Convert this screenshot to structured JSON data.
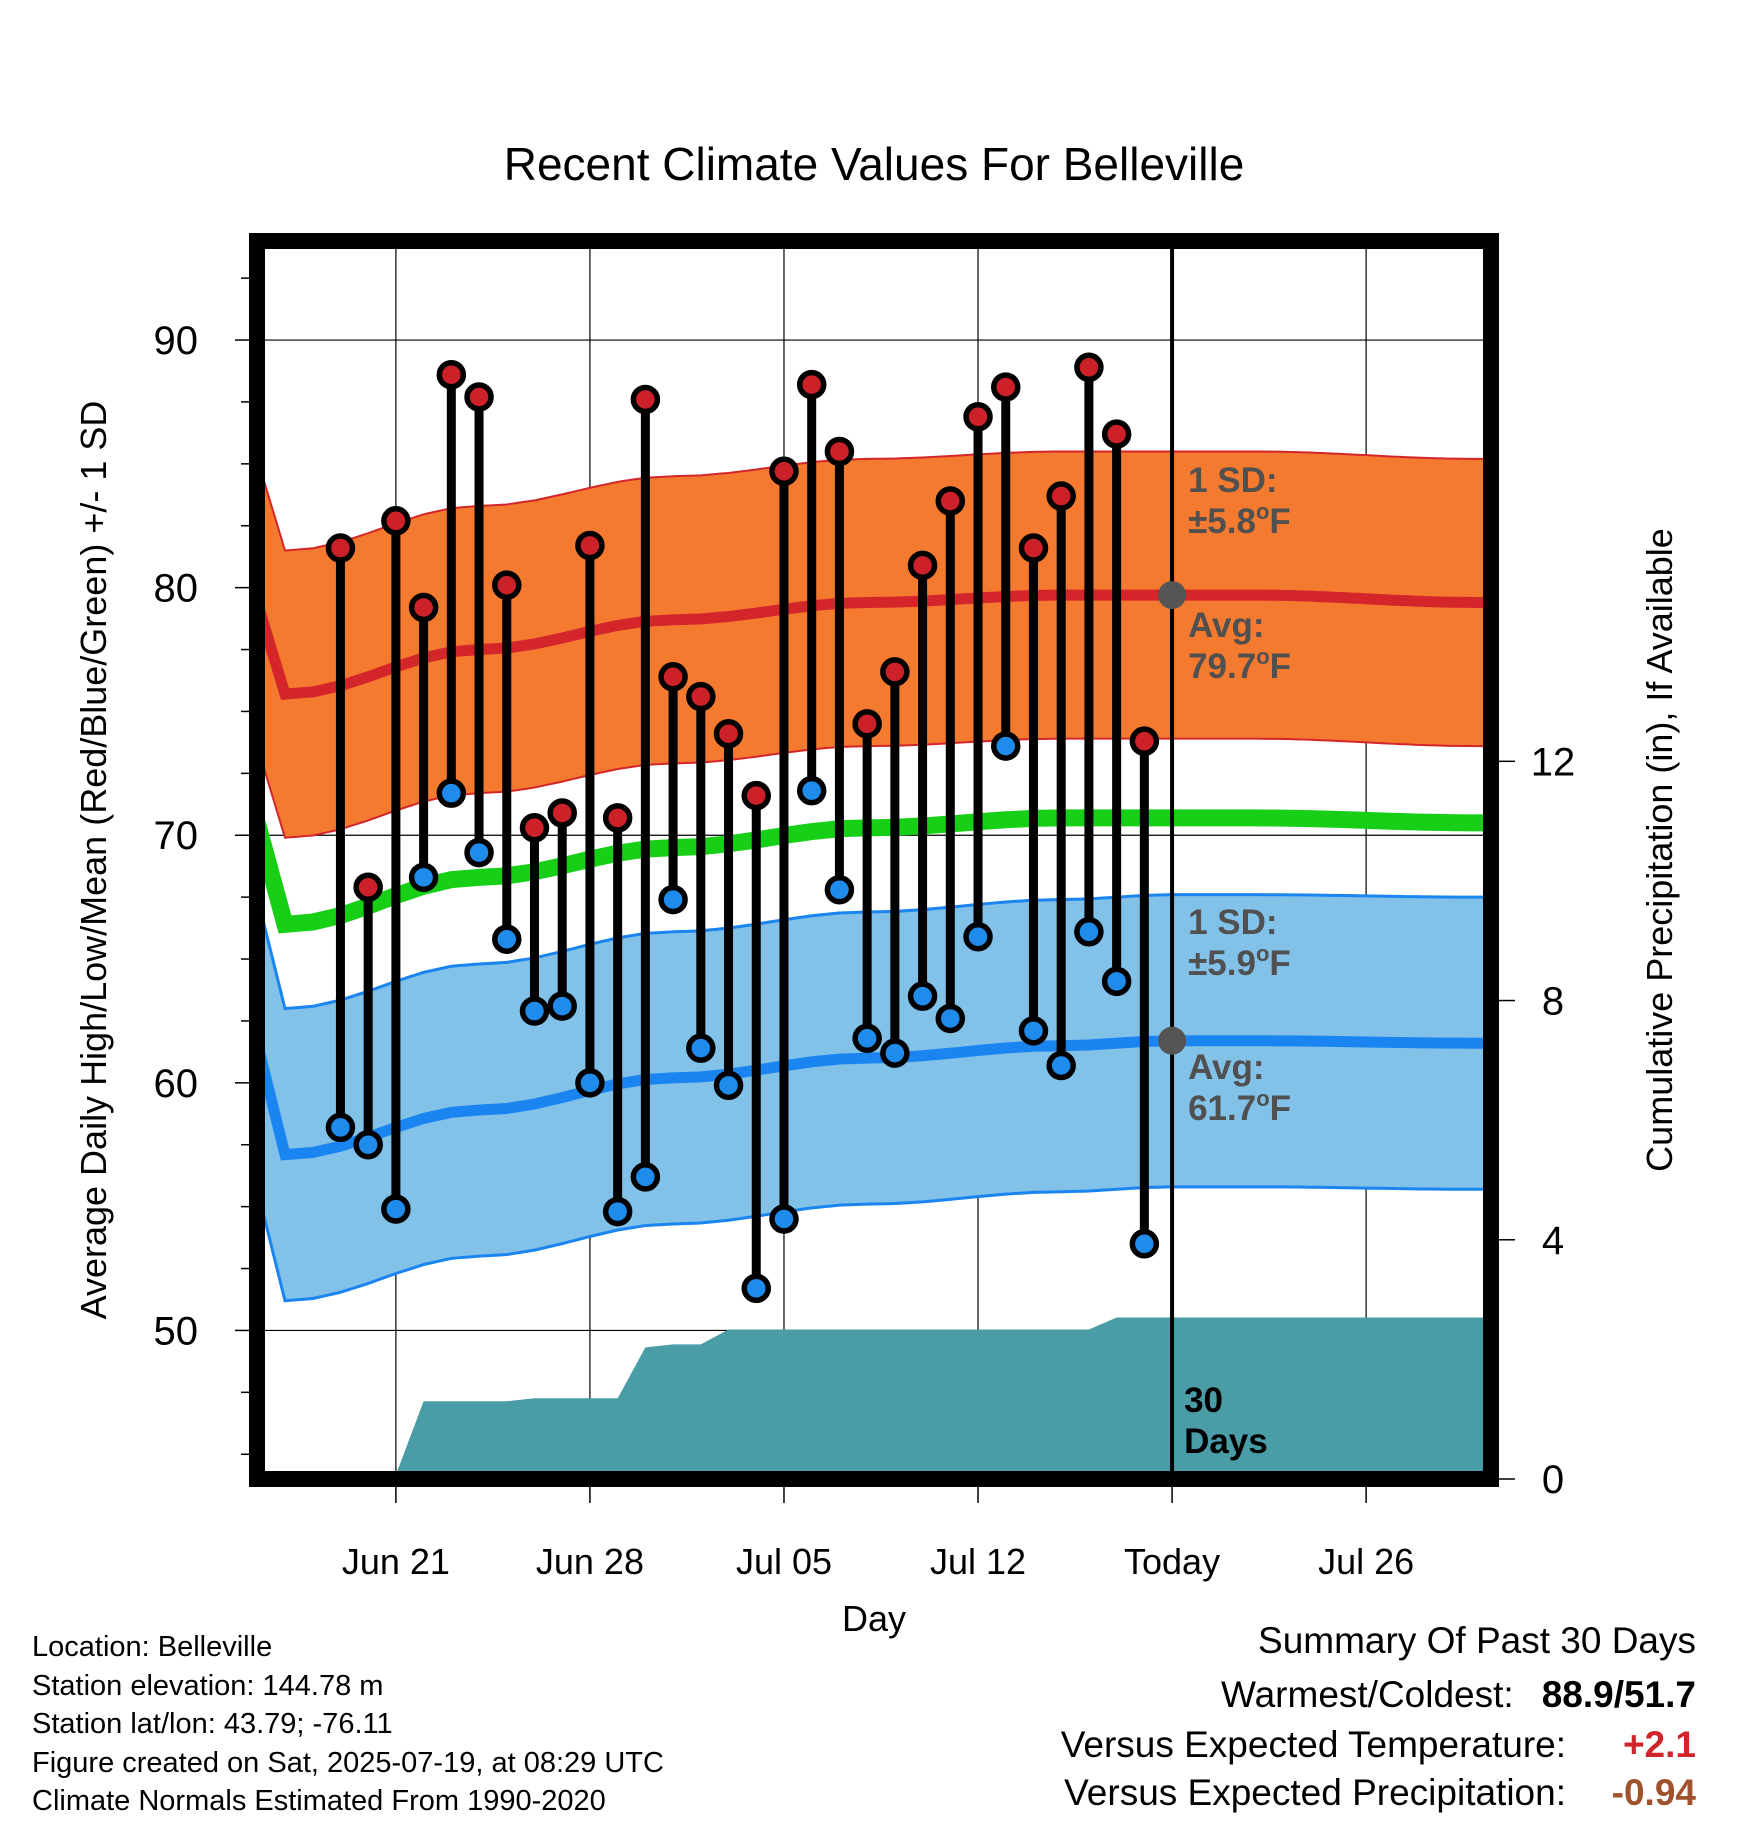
{
  "chart_data": {
    "type": "line",
    "title": "Recent Climate Values For Belleville",
    "xlabel": "Day",
    "ylabel": "Average Daily High/Low/Mean (Red/Blue/Green) +/- 1 SD",
    "y2label": "Cumulative Precipitation (in), If Available",
    "ylim": [
      44,
      94
    ],
    "y2lim": [
      0,
      20.7
    ],
    "yticks": [
      50,
      60,
      70,
      80,
      90
    ],
    "y2ticks": [
      0,
      4,
      8,
      12
    ],
    "x_dates": [
      "2025-06-17",
      "2025-07-30"
    ],
    "x_tick_dates": [
      "2025-06-21",
      "2025-06-28",
      "2025-07-05",
      "2025-07-12",
      "2025-07-19",
      "2025-07-26"
    ],
    "x_tick_labels": [
      "Jun 21",
      "Jun 28",
      "Jul 05",
      "Jul 12",
      "Today",
      "Jul 26"
    ],
    "today": "2025-07-19",
    "grid": true,
    "observed": [
      {
        "date": "2025-06-19",
        "high": 81.6,
        "low": 58.2
      },
      {
        "date": "2025-06-20",
        "high": 67.9,
        "low": 57.5
      },
      {
        "date": "2025-06-21",
        "high": 82.7,
        "low": 54.9
      },
      {
        "date": "2025-06-22",
        "high": 79.2,
        "low": 68.3
      },
      {
        "date": "2025-06-23",
        "high": 88.6,
        "low": 71.7
      },
      {
        "date": "2025-06-24",
        "high": 87.7,
        "low": 69.3
      },
      {
        "date": "2025-06-25",
        "high": 80.1,
        "low": 65.8
      },
      {
        "date": "2025-06-26",
        "high": 70.3,
        "low": 62.9
      },
      {
        "date": "2025-06-27",
        "high": 70.9,
        "low": 63.1
      },
      {
        "date": "2025-06-28",
        "high": 81.7,
        "low": 60.0
      },
      {
        "date": "2025-06-29",
        "high": 70.7,
        "low": 54.8
      },
      {
        "date": "2025-06-30",
        "high": 87.6,
        "low": 56.2
      },
      {
        "date": "2025-07-01",
        "high": 76.4,
        "low": 67.4
      },
      {
        "date": "2025-07-02",
        "high": 75.6,
        "low": 61.4
      },
      {
        "date": "2025-07-03",
        "high": 74.1,
        "low": 59.9
      },
      {
        "date": "2025-07-04",
        "high": 71.6,
        "low": 51.7
      },
      {
        "date": "2025-07-05",
        "high": 84.7,
        "low": 54.5
      },
      {
        "date": "2025-07-06",
        "high": 88.2,
        "low": 71.8
      },
      {
        "date": "2025-07-07",
        "high": 85.5,
        "low": 67.8
      },
      {
        "date": "2025-07-08",
        "high": 74.5,
        "low": 61.8
      },
      {
        "date": "2025-07-09",
        "high": 76.6,
        "low": 61.2
      },
      {
        "date": "2025-07-10",
        "high": 80.9,
        "low": 63.5
      },
      {
        "date": "2025-07-11",
        "high": 83.5,
        "low": 62.6
      },
      {
        "date": "2025-07-12",
        "high": 86.9,
        "low": 65.9
      },
      {
        "date": "2025-07-13",
        "high": 88.1,
        "low": 73.6
      },
      {
        "date": "2025-07-14",
        "high": 81.6,
        "low": 62.1
      },
      {
        "date": "2025-07-15",
        "high": 83.7,
        "low": 60.7
      },
      {
        "date": "2025-07-16",
        "high": 88.9,
        "low": 66.1
      },
      {
        "date": "2025-07-17",
        "high": 86.2,
        "low": 64.1
      },
      {
        "date": "2025-07-18",
        "high": 73.8,
        "low": 53.5
      }
    ],
    "normals": [
      {
        "date": "2025-06-17",
        "high": 75.7,
        "low": 57.1,
        "mean": 66.4
      },
      {
        "date": "2025-06-24",
        "high": 77.5,
        "low": 58.9,
        "mean": 68.3
      },
      {
        "date": "2025-07-01",
        "high": 78.7,
        "low": 60.2,
        "mean": 69.5
      },
      {
        "date": "2025-07-08",
        "high": 79.4,
        "low": 61.0,
        "mean": 70.3
      },
      {
        "date": "2025-07-15",
        "high": 79.7,
        "low": 61.5,
        "mean": 70.7
      },
      {
        "date": "2025-07-19",
        "high": 79.7,
        "low": 61.7,
        "mean": 70.7
      },
      {
        "date": "2025-07-22",
        "high": 79.7,
        "low": 61.7,
        "mean": 70.7
      },
      {
        "date": "2025-07-30",
        "high": 79.4,
        "low": 61.6,
        "mean": 70.5
      }
    ],
    "high_sd": 5.8,
    "low_sd": 5.9,
    "precip_cumulative": [
      {
        "date": "2025-06-17",
        "value": 0.0
      },
      {
        "date": "2025-06-19",
        "value": 0.0
      },
      {
        "date": "2025-06-20",
        "value": 0.06
      },
      {
        "date": "2025-06-21",
        "value": 0.07
      },
      {
        "date": "2025-06-22",
        "value": 1.3
      },
      {
        "date": "2025-06-25",
        "value": 1.3
      },
      {
        "date": "2025-06-26",
        "value": 1.35
      },
      {
        "date": "2025-06-29",
        "value": 1.35
      },
      {
        "date": "2025-06-30",
        "value": 2.2
      },
      {
        "date": "2025-07-01",
        "value": 2.25
      },
      {
        "date": "2025-07-02",
        "value": 2.25
      },
      {
        "date": "2025-07-03",
        "value": 2.5
      },
      {
        "date": "2025-07-16",
        "value": 2.5
      },
      {
        "date": "2025-07-17",
        "value": 2.7
      },
      {
        "date": "2025-07-30",
        "value": 2.7
      }
    ],
    "annotations": {
      "high_sd_label": "1 SD:",
      "high_sd_value": "±5.8",
      "high_avg_label": "Avg:",
      "high_avg_value": "79.7",
      "low_sd_label": "1 SD:",
      "low_sd_value": "±5.9",
      "low_avg_label": "Avg:",
      "low_avg_value": "61.7",
      "deg_sup": "o",
      "unit": "F",
      "window_line1": "30",
      "window_line2": "Days"
    },
    "colors": {
      "high_band": "#f47a30",
      "high_line": "#d4262a",
      "low_band": "#82c1e8",
      "low_edge": "#1a85f0",
      "low_line": "#1a85f0",
      "mean_line": "#18cf18",
      "precip": "#4a9ca6",
      "high_marker": "#cc2128",
      "low_marker": "#1f8bea",
      "annotation": "#505050",
      "avg_dot": "#555555",
      "positive": "#d0262b",
      "negative": "#a0522d"
    }
  },
  "footer": {
    "location": "Location: Belleville",
    "elevation": "Station elevation: 144.78 m",
    "latlon": "Station lat/lon: 43.79; -76.11",
    "created": "Figure created on Sat, 2025-07-19, at 08:29 UTC",
    "normals": "Climate Normals Estimated From 1990-2020"
  },
  "summary": {
    "title": "Summary Of Past 30 Days",
    "warmest_label": "Warmest/Coldest:",
    "warmest_value": "88.9/51.7",
    "temp_label": "Versus Expected Temperature:",
    "temp_value": "+2.1",
    "precip_label": "Versus Expected Precipitation:",
    "precip_value": "-0.94"
  }
}
